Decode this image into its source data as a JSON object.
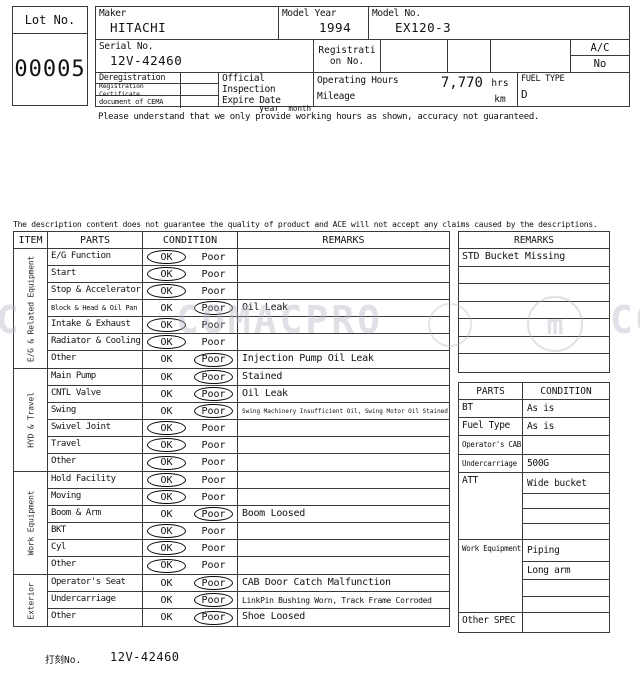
{
  "lot": {
    "label": "Lot No.",
    "value": "00005"
  },
  "header": {
    "maker": {
      "label": "Maker",
      "value": "HITACHI"
    },
    "model_year": {
      "label": "Model Year",
      "value": "1994"
    },
    "model_no": {
      "label": "Model No.",
      "value": "EX120-3"
    },
    "serial_no": {
      "label": "Serial No.",
      "value": "12V-42460"
    },
    "registration_no": {
      "label": "Registration No."
    },
    "ac": {
      "label": "A/C",
      "value": "No"
    },
    "certificates": [
      "Deregistration",
      "Registration Certificate",
      "document of CEMA"
    ],
    "official_inspection": {
      "label_line1": "Official Inspection",
      "label_line2": "Expire Date",
      "year": "year",
      "month": "month"
    },
    "operating_hours": {
      "label": "Operating Hours",
      "value": "7,770",
      "unit": "hrs"
    },
    "mileage": {
      "label": "Mileage",
      "unit": "km"
    },
    "fuel_type": {
      "label": "FUEL TYPE",
      "value": "D"
    }
  },
  "notices": {
    "hours": "Please understand that we only provide working hours as shown, accuracy not guaranteed.",
    "description": "The description content does not guarantee the quality of product and ACE will not accept any claims caused by the descriptions."
  },
  "condition_options": {
    "ok": "OK",
    "poor": "Poor"
  },
  "inspection_table": {
    "headers": {
      "item": "ITEM",
      "parts": "PARTS",
      "condition": "CONDITION",
      "remarks": "REMARKS"
    },
    "groups": [
      {
        "label": "E/G & Related Equipment",
        "rows": [
          {
            "parts": "E/G Function",
            "circled": "ok",
            "remark": ""
          },
          {
            "parts": "Start",
            "circled": "ok",
            "remark": ""
          },
          {
            "parts": "Stop & Accelerator",
            "circled": "ok",
            "remark": ""
          },
          {
            "parts": "Block & Head & Oil Pan",
            "parts_small": true,
            "circled": "poor",
            "remark": "Oil Leak"
          },
          {
            "parts": "Intake & Exhaust",
            "circled": "ok",
            "remark": ""
          },
          {
            "parts": "Radiator & Cooling",
            "circled": "ok",
            "remark": ""
          },
          {
            "parts": "Other",
            "circled": "poor",
            "remark": "Injection Pump Oil Leak"
          }
        ]
      },
      {
        "label": "HYD & Travel",
        "rows": [
          {
            "parts": "Main Pump",
            "circled": "poor",
            "remark": "Stained"
          },
          {
            "parts": "CNTL Valve",
            "circled": "poor",
            "remark": "Oil Leak"
          },
          {
            "parts": "Swing",
            "circled": "poor",
            "remark": "Swing Machinery Insufficient Oil, Swing Motor Oil Stained"
          },
          {
            "parts": "Swivel Joint",
            "circled": "ok",
            "remark": ""
          },
          {
            "parts": "Travel",
            "circled": "ok",
            "remark": ""
          },
          {
            "parts": "Other",
            "circled": "ok",
            "remark": ""
          }
        ]
      },
      {
        "label": "Work Equipment",
        "rows": [
          {
            "parts": "Hold Facility",
            "circled": "ok",
            "remark": ""
          },
          {
            "parts": "Moving",
            "circled": "ok",
            "remark": ""
          },
          {
            "parts": "Boom & Arm",
            "circled": "poor",
            "remark": "Boom Loosed"
          },
          {
            "parts": "BKT",
            "circled": "ok",
            "remark": ""
          },
          {
            "parts": "Cyl",
            "circled": "ok",
            "remark": ""
          },
          {
            "parts": "Other",
            "circled": "ok",
            "remark": ""
          }
        ]
      },
      {
        "label": "Exterior",
        "rows": [
          {
            "parts": "Operator's Seat",
            "circled": "poor",
            "remark": "CAB Door Catch Malfunction"
          },
          {
            "parts": "Undercarriage",
            "circled": "poor",
            "remark": "LinkPin Bushing Worn, Track Frame Corroded"
          },
          {
            "parts": "Other",
            "circled": "poor",
            "remark": "Shoe Loosed"
          }
        ]
      }
    ]
  },
  "side_remarks": {
    "header": "REMARKS",
    "rows": [
      "STD Bucket Missing",
      "",
      "",
      "",
      "",
      "",
      ""
    ]
  },
  "spec_table": {
    "headers": {
      "parts": "PARTS",
      "condition": "CONDITION"
    },
    "rows": [
      {
        "parts": "BT",
        "conditions": [
          "As is"
        ]
      },
      {
        "parts": "Fuel Type",
        "conditions": [
          "As is"
        ]
      },
      {
        "parts": "Operator's CAB",
        "parts_small": true,
        "conditions": [
          ""
        ]
      },
      {
        "parts": "Undercarriage",
        "parts_small": true,
        "conditions": [
          "500G"
        ]
      },
      {
        "parts": "ATT",
        "conditions": [
          "Wide bucket",
          "",
          "",
          ""
        ]
      },
      {
        "parts": "Work Equipment",
        "parts_small": true,
        "conditions": [
          "Piping",
          "Long arm",
          "",
          ""
        ]
      },
      {
        "parts": "Other SPEC",
        "conditions": [
          ""
        ]
      }
    ]
  },
  "stamp": {
    "label": "打刻No.",
    "value": "12V-42460"
  },
  "watermark": {
    "left_fragment": "AC",
    "text": "COMACPRO",
    "right_fragment": "CO",
    "logo_letter": "m"
  }
}
